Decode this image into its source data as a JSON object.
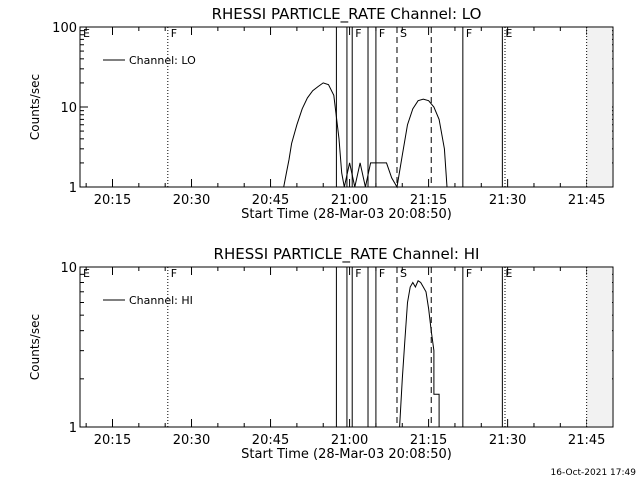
{
  "timestamp": "16-Oct-2021 17:49",
  "chart_data": [
    {
      "type": "line",
      "title": "RHESSI PARTICLE_RATE Channel: LO",
      "xlabel": "Start Time (28-Mar-03 20:08:50)",
      "ylabel": "Counts/sec",
      "y_scale": "log",
      "ylim": [
        1,
        100
      ],
      "xlim": [
        "20:08:50",
        "21:50:00"
      ],
      "y_ticks": [
        "1",
        "10",
        "100"
      ],
      "x_ticks": [
        "20:15",
        "20:30",
        "20:45",
        "21:00",
        "21:15",
        "21:30",
        "21:45"
      ],
      "legend": {
        "label": "Channel: LO",
        "position": "top-left"
      },
      "series": [
        {
          "name": "Channel: LO",
          "x": [
            "20:47:30",
            "20:48:00",
            "20:48:30",
            "20:49:00",
            "20:50:00",
            "20:51:00",
            "20:52:00",
            "20:53:00",
            "20:54:00",
            "20:55:00",
            "20:56:00",
            "20:57:00",
            "20:58:00",
            "20:58:30",
            "20:59:00",
            "21:00:00",
            "21:01:00",
            "21:02:00",
            "21:03:00",
            "21:04:00",
            "21:05:00",
            "21:06:00",
            "21:07:00",
            "21:08:00",
            "21:09:00",
            "21:10:00",
            "21:11:00",
            "21:12:00",
            "21:13:00",
            "21:14:00",
            "21:15:00",
            "21:16:00",
            "21:17:00",
            "21:18:00",
            "21:18:30"
          ],
          "y": [
            1.0,
            1.5,
            2.2,
            3.5,
            6.0,
            9.5,
            13.0,
            16.0,
            18.0,
            20.0,
            19.0,
            14.0,
            4.0,
            1.5,
            1.0,
            2.0,
            1.0,
            2.0,
            1.0,
            2.0,
            2.0,
            2.0,
            2.0,
            1.3,
            1.0,
            2.5,
            6.0,
            9.5,
            12.0,
            12.5,
            12.0,
            10.0,
            7.0,
            3.0,
            1.0
          ]
        }
      ],
      "markers": [
        {
          "label": "E",
          "time": "20:08:50",
          "style": "solid"
        },
        {
          "label": "F",
          "time": "20:25:30",
          "style": "dotted"
        },
        {
          "label": "",
          "time": "20:57:30",
          "style": "solid"
        },
        {
          "label": "",
          "time": "20:59:30",
          "style": "solid"
        },
        {
          "label": "F",
          "time": "21:00:30",
          "style": "solid"
        },
        {
          "label": "",
          "time": "21:03:30",
          "style": "solid"
        },
        {
          "label": "F",
          "time": "21:05:00",
          "style": "solid"
        },
        {
          "label": "S",
          "time": "21:09:00",
          "style": "dashed"
        },
        {
          "label": "",
          "time": "21:15:30",
          "style": "dashed"
        },
        {
          "label": "F",
          "time": "21:21:30",
          "style": "solid"
        },
        {
          "label": "E",
          "time": "21:29:00",
          "style": "solid"
        },
        {
          "label": "",
          "time": "21:29:30",
          "style": "dotted"
        },
        {
          "label": "",
          "time": "21:45:00",
          "style": "dotted"
        }
      ]
    },
    {
      "type": "line",
      "title": "RHESSI PARTICLE_RATE Channel: HI",
      "xlabel": "Start Time (28-Mar-03 20:08:50)",
      "ylabel": "Counts/sec",
      "y_scale": "log",
      "ylim": [
        1,
        10
      ],
      "xlim": [
        "20:08:50",
        "21:50:00"
      ],
      "y_ticks": [
        "1",
        "10"
      ],
      "x_ticks": [
        "20:15",
        "20:30",
        "20:45",
        "21:00",
        "21:15",
        "21:30",
        "21:45"
      ],
      "legend": {
        "label": "Channel: HI",
        "position": "top-left"
      },
      "series": [
        {
          "name": "Channel: HI",
          "x": [
            "21:09:30",
            "21:10:00",
            "21:10:30",
            "21:11:00",
            "21:11:30",
            "21:12:00",
            "21:12:30",
            "21:13:00",
            "21:13:30",
            "21:14:00",
            "21:14:30",
            "21:15:00",
            "21:15:30",
            "21:16:00",
            "21:16:00",
            "21:17:00",
            "21:17:00",
            "21:18:00"
          ],
          "y": [
            1.0,
            2.0,
            3.5,
            6.0,
            7.5,
            8.0,
            7.5,
            8.2,
            8.0,
            7.5,
            7.0,
            5.5,
            4.0,
            3.0,
            1.6,
            1.6,
            1.0,
            1.0
          ]
        }
      ],
      "markers": [
        {
          "label": "E",
          "time": "20:08:50",
          "style": "solid"
        },
        {
          "label": "F",
          "time": "20:25:30",
          "style": "dotted"
        },
        {
          "label": "",
          "time": "20:57:30",
          "style": "solid"
        },
        {
          "label": "",
          "time": "20:59:30",
          "style": "solid"
        },
        {
          "label": "F",
          "time": "21:00:30",
          "style": "solid"
        },
        {
          "label": "",
          "time": "21:03:30",
          "style": "solid"
        },
        {
          "label": "F",
          "time": "21:05:00",
          "style": "solid"
        },
        {
          "label": "S",
          "time": "21:09:00",
          "style": "dashed"
        },
        {
          "label": "",
          "time": "21:15:30",
          "style": "dashed"
        },
        {
          "label": "F",
          "time": "21:21:30",
          "style": "solid"
        },
        {
          "label": "E",
          "time": "21:29:00",
          "style": "solid"
        },
        {
          "label": "",
          "time": "21:29:30",
          "style": "dotted"
        },
        {
          "label": "",
          "time": "21:45:00",
          "style": "dotted"
        }
      ]
    }
  ]
}
